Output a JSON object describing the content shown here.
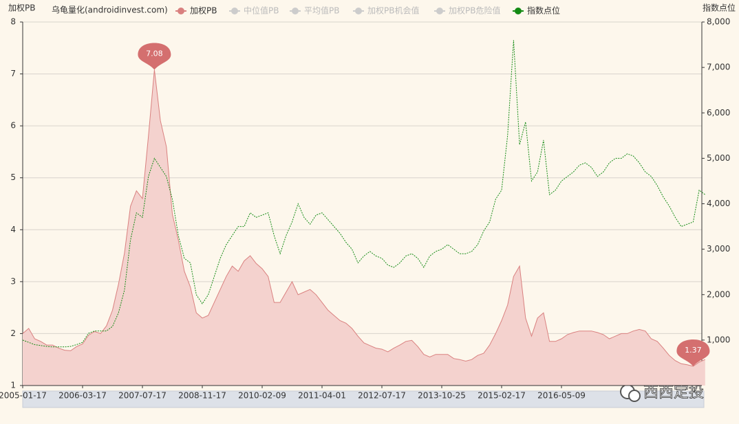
{
  "chart_data": {
    "type": "area-line",
    "subtitle": "乌龟量化(androidinvest.com)",
    "y_axis_title": "加权PB",
    "y2_axis_title": "指数点位",
    "watermark": "西西定投",
    "legend": [
      {
        "name": "加权PB",
        "color": "#d9807f",
        "active": true
      },
      {
        "name": "中位值PB",
        "color": "#cccccc",
        "active": false
      },
      {
        "name": "平均值PB",
        "color": "#cccccc",
        "active": false
      },
      {
        "name": "加权PB机会值",
        "color": "#cccccc",
        "active": false
      },
      {
        "name": "加权PB危险值",
        "color": "#cccccc",
        "active": false
      },
      {
        "name": "指数点位",
        "color": "#138a13",
        "active": true
      }
    ],
    "categories": [
      "2005-01-17",
      null,
      null,
      null,
      null,
      null,
      null,
      null,
      null,
      null,
      "2006-03-17",
      null,
      null,
      null,
      null,
      null,
      null,
      null,
      null,
      null,
      "2007-07-17",
      null,
      null,
      null,
      null,
      null,
      null,
      null,
      null,
      null,
      "2008-11-17",
      null,
      null,
      null,
      null,
      null,
      null,
      null,
      null,
      null,
      "2010-02-09",
      null,
      null,
      null,
      null,
      null,
      null,
      null,
      null,
      null,
      "2011-04-01",
      null,
      null,
      null,
      null,
      null,
      null,
      null,
      null,
      null,
      "2012-07-17",
      null,
      null,
      null,
      null,
      null,
      null,
      null,
      null,
      null,
      "2013-10-25",
      null,
      null,
      null,
      null,
      null,
      null,
      null,
      null,
      null,
      "2015-02-17",
      null,
      null,
      null,
      null,
      null,
      null,
      null,
      null,
      null,
      "2016-05-09",
      null,
      null,
      null,
      null,
      null,
      null,
      null,
      null,
      null,
      null,
      null,
      null,
      null,
      null,
      null,
      null,
      null,
      null,
      null,
      null,
      null,
      null,
      null,
      null
    ],
    "series": [
      {
        "name": "加权PB",
        "color": "#d9807f",
        "fill": "#f4d2ce",
        "values": [
          2.0,
          2.1,
          1.9,
          1.85,
          1.78,
          1.78,
          1.72,
          1.68,
          1.67,
          1.75,
          1.8,
          1.97,
          2.04,
          2.0,
          2.15,
          2.45,
          2.95,
          3.55,
          4.45,
          4.75,
          4.6,
          5.8,
          7.08,
          6.1,
          5.6,
          4.3,
          3.8,
          3.2,
          2.9,
          2.4,
          2.3,
          2.35,
          2.6,
          2.85,
          3.1,
          3.3,
          3.2,
          3.4,
          3.5,
          3.35,
          3.25,
          3.1,
          2.6,
          2.6,
          2.8,
          3.0,
          2.75,
          2.8,
          2.85,
          2.75,
          2.6,
          2.45,
          2.35,
          2.25,
          2.2,
          2.1,
          1.95,
          1.82,
          1.77,
          1.72,
          1.7,
          1.65,
          1.72,
          1.78,
          1.85,
          1.87,
          1.75,
          1.6,
          1.55,
          1.6,
          1.6,
          1.6,
          1.52,
          1.5,
          1.47,
          1.5,
          1.58,
          1.62,
          1.78,
          2.0,
          2.25,
          2.55,
          3.1,
          3.3,
          2.3,
          1.95,
          2.3,
          2.4,
          1.85,
          1.85,
          1.9,
          1.98,
          2.02,
          2.05,
          2.05,
          2.05,
          2.02,
          1.98,
          1.9,
          1.95,
          2.0,
          2.0,
          2.05,
          2.08,
          2.05,
          1.9,
          1.85,
          1.72,
          1.58,
          1.48,
          1.42,
          1.4,
          1.37,
          1.45,
          1.5
        ]
      },
      {
        "name": "指数点位",
        "color": "#138a13",
        "axis": "y2",
        "dashed": true,
        "values": [
          1000,
          950,
          900,
          880,
          860,
          850,
          850,
          850,
          860,
          900,
          950,
          1150,
          1200,
          1200,
          1200,
          1300,
          1600,
          2100,
          3200,
          3800,
          3700,
          4600,
          5000,
          4800,
          4600,
          4100,
          3300,
          2800,
          2700,
          2000,
          1800,
          2000,
          2400,
          2800,
          3100,
          3300,
          3500,
          3500,
          3800,
          3700,
          3750,
          3800,
          3300,
          2900,
          3300,
          3600,
          4000,
          3700,
          3550,
          3750,
          3800,
          3650,
          3500,
          3350,
          3150,
          3000,
          2700,
          2850,
          2950,
          2850,
          2800,
          2650,
          2600,
          2700,
          2850,
          2900,
          2800,
          2600,
          2850,
          2950,
          3000,
          3100,
          3000,
          2900,
          2900,
          2950,
          3100,
          3400,
          3600,
          4100,
          4300,
          5500,
          7600,
          5300,
          5800,
          4500,
          4700,
          5400,
          4200,
          4300,
          4500,
          4600,
          4700,
          4850,
          4900,
          4800,
          4600,
          4700,
          4900,
          5000,
          5000,
          5100,
          5050,
          4900,
          4700,
          4600,
          4400,
          4150,
          3950,
          3700,
          3500,
          3550,
          3600,
          4300,
          4200
        ]
      }
    ],
    "ylim": [
      1,
      8
    ],
    "yticks": [
      1,
      2,
      3,
      4,
      5,
      6,
      7,
      8
    ],
    "y2lim": [
      0,
      8000
    ],
    "y2ticks": [
      {
        "value": 1000,
        "label": "1,000"
      },
      {
        "value": 2000,
        "label": "2,000"
      },
      {
        "value": 3000,
        "label": "3,000"
      },
      {
        "value": 4000,
        "label": "4,000"
      },
      {
        "value": 5000,
        "label": "5,000"
      },
      {
        "value": 6000,
        "label": "6,000"
      },
      {
        "value": 7000,
        "label": "7,000"
      },
      {
        "value": 8000,
        "label": "8,000"
      }
    ],
    "grid": true
  }
}
